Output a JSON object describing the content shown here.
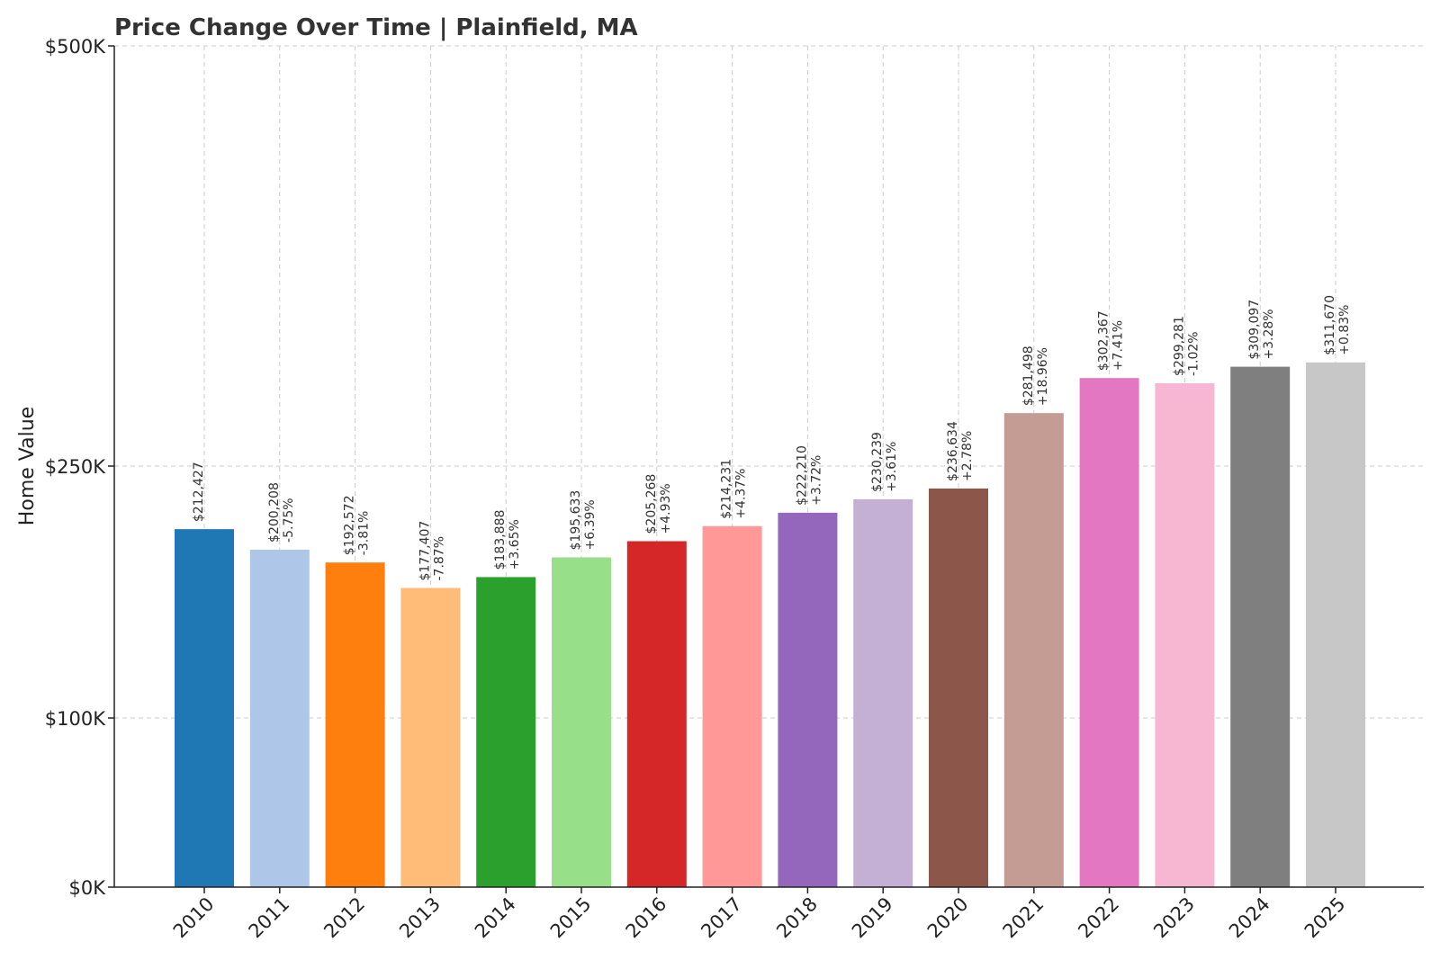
{
  "chart_data": {
    "type": "bar",
    "title": "Price Change Over Time | Plainfield, MA",
    "xlabel": "",
    "ylabel": "Home Value",
    "ylim": [
      0,
      500000
    ],
    "yticks": [
      {
        "value": 0,
        "label": "$0K"
      },
      {
        "value": 100000,
        "label": "$100K"
      },
      {
        "value": 250000,
        "label": "$250K"
      },
      {
        "value": 500000,
        "label": "$500K"
      }
    ],
    "grid": true,
    "categories": [
      "2010",
      "2011",
      "2012",
      "2013",
      "2014",
      "2015",
      "2016",
      "2017",
      "2018",
      "2019",
      "2020",
      "2021",
      "2022",
      "2023",
      "2024",
      "2025"
    ],
    "values": [
      212427,
      200208,
      192572,
      177407,
      183888,
      195633,
      205268,
      214231,
      222210,
      230239,
      236634,
      281498,
      302367,
      299281,
      309097,
      311670
    ],
    "value_labels": [
      "$212,427",
      "$200,208",
      "$192,572",
      "$177,407",
      "$183,888",
      "$195,633",
      "$205,268",
      "$214,231",
      "$222,210",
      "$230,239",
      "$236,634",
      "$281,498",
      "$302,367",
      "$299,281",
      "$309,097",
      "$311,670"
    ],
    "change_labels": [
      "",
      "-5.75%",
      "-3.81%",
      "-7.87%",
      "+3.65%",
      "+6.39%",
      "+4.93%",
      "+4.37%",
      "+3.72%",
      "+3.61%",
      "+2.78%",
      "+18.96%",
      "+7.41%",
      "-1.02%",
      "+3.28%",
      "+0.83%"
    ],
    "colors": [
      "#1f77b4",
      "#aec7e8",
      "#ff7f0e",
      "#ffbb78",
      "#2ca02c",
      "#98df8a",
      "#d62728",
      "#ff9896",
      "#9467bd",
      "#c5b0d5",
      "#8c564b",
      "#c49c94",
      "#e377c2",
      "#f7b6d2",
      "#7f7f7f",
      "#c7c7c7"
    ]
  }
}
